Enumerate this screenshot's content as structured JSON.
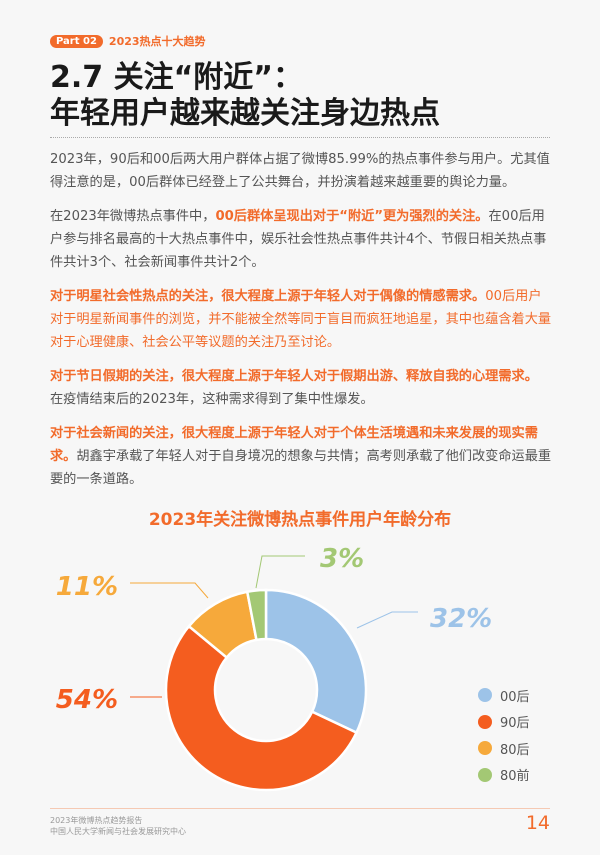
{
  "header": {
    "part": "Part 02",
    "section": "2023热点十大趋势"
  },
  "title": {
    "line1": "2.7 关注“附近”：",
    "line2": "年轻用户越来越关注身边热点"
  },
  "paragraphs": {
    "p1": "2023年，90后和00后两大用户群体占据了微博85.99%的热点事件参与用户。尤其值得注意的是，00后群体已经登上了公共舞台，并扮演着越来越重要的舆论力量。",
    "p2a": "在2023年微博热点事件中，",
    "p2b": "00后群体呈现出对于“附近”更为强烈的关注。",
    "p2c": "在00后用户参与排名最高的十大热点事件中，娱乐社会性热点事件共计4个、节假日相关热点事件共计3个、社会新闻事件共计2个。",
    "p3a": "对于明星社会性热点的关注，很大程度上源于年轻人对于偶像的情感需求。",
    "p3b": "00后用户对于明星新闻事件的浏览，并不能被全然等同于盲目而疯狂地追星，其中也蕴含着大量对于心理健康、社会公平等议题的关注乃至讨论。",
    "p4a": "对于节日假期的关注，很大程度上源于年轻人对于假期出游、释放自我的心理需求。",
    "p4b": "在疫情结束后的2023年，这种需求得到了集中性爆发。",
    "p5a": "对于社会新闻的关注，很大程度上源于年轻人对于个体生活境遇和未来发展的现实需求。",
    "p5b": "胡鑫宇承载了年轻人对于自身境况的想象与共情；高考则承载了他们改变命运最重要的一条道路。"
  },
  "chart_data": {
    "type": "pie",
    "donut": true,
    "title": "2023年关注微博热点事件用户年龄分布",
    "categories": [
      "00后",
      "90后",
      "80后",
      "80前"
    ],
    "values": [
      32,
      54,
      11,
      3
    ],
    "labels": [
      "32%",
      "54%",
      "11%",
      "3%"
    ],
    "colors": [
      "#9dc3e8",
      "#f45d1f",
      "#f6a93b",
      "#a3c874"
    ],
    "legend": "right"
  },
  "footer": {
    "line1": "2023年微博热点趋势报告",
    "line2": "中国人民大学新闻与社会发展研究中心",
    "page": "14"
  }
}
